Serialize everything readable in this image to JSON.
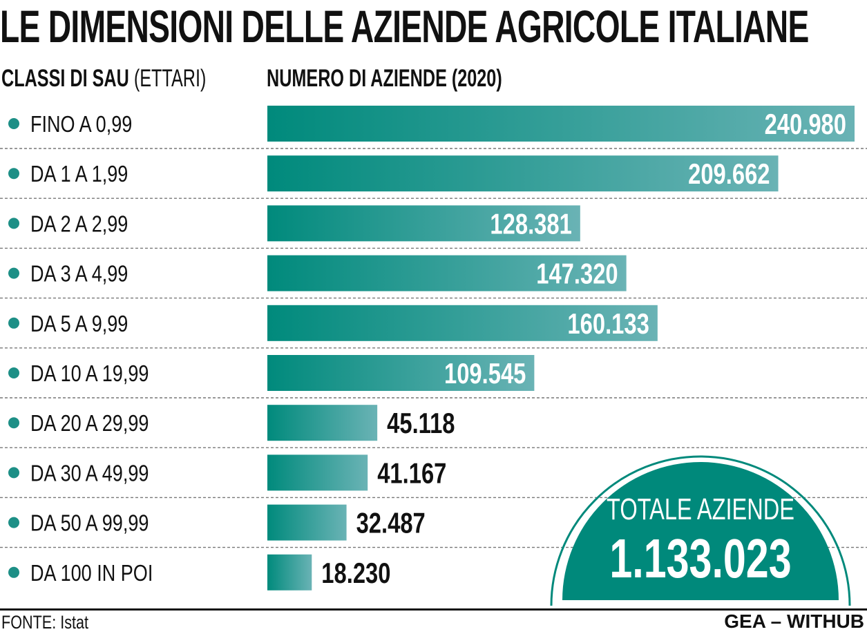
{
  "title": "LE DIMENSIONI DELLE AZIENDE AGRICOLE ITALIANE",
  "headers": {
    "classes_bold": "CLASSI DI SAU",
    "classes_light": "(ETTARI)",
    "count": "NUMERO DI AZIENDE (2020)"
  },
  "chart_data": {
    "type": "bar",
    "orientation": "horizontal",
    "categories": [
      "FINO A 0,99",
      "DA 1 A 1,99",
      "DA 2 A 2,99",
      "DA 3 A 4,99",
      "DA 5 A 9,99",
      "DA 10 A 19,99",
      "DA 20 A 29,99",
      "DA 30 A 49,99",
      "DA 50 A 99,99",
      "DA 100 IN POI"
    ],
    "values": [
      240980,
      209662,
      128381,
      147320,
      160133,
      109545,
      45118,
      41167,
      32487,
      18230
    ],
    "value_labels": [
      "240.980",
      "209.662",
      "128.381",
      "147.320",
      "160.133",
      "109.545",
      "45.118",
      "41.167",
      "32.487",
      "18.230"
    ],
    "xlim": [
      0,
      240980
    ],
    "grid": false,
    "legend": "none"
  },
  "total": {
    "label": "TOTALE AZIENDE",
    "value": "1.133.023"
  },
  "source": "FONTE: Istat",
  "credit": "GEA – WITHUB",
  "colors": {
    "bar_dark": "#008a7c",
    "bar_light": "#6ab3b5",
    "bullet": "#1d8f86",
    "total_fill": "#00897b",
    "divider": "#777777"
  }
}
